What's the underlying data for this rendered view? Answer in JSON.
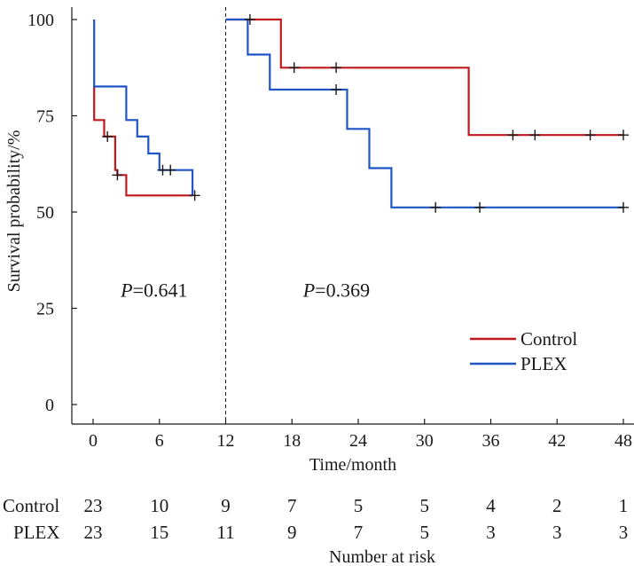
{
  "chart_data": {
    "type": "line",
    "subtype": "kaplan-meier",
    "ylabel": "Survival probability/%",
    "xlabel": "Time/month",
    "xlim": [
      0,
      48
    ],
    "ylim": [
      0,
      100
    ],
    "x_ticks": [
      0,
      6,
      12,
      18,
      24,
      30,
      36,
      42,
      48
    ],
    "y_ticks": [
      0,
      25,
      50,
      75,
      100
    ],
    "landmark_time": 12,
    "annotations": [
      {
        "prefix": "P",
        "text": "=0.641",
        "x": 2.5,
        "y": 28
      },
      {
        "prefix": "P",
        "text": "=0.369",
        "x": 19,
        "y": 28
      }
    ],
    "legend": {
      "position": "right",
      "entries": [
        "Control",
        "PLEX"
      ]
    },
    "series": [
      {
        "name": "Control",
        "color": "#c0181c",
        "segments": [
          {
            "points": [
              [
                0,
                82.6
              ],
              [
                0.1,
                82.6
              ],
              [
                0.1,
                73.9
              ],
              [
                1,
                73.9
              ],
              [
                1,
                69.6
              ],
              [
                2,
                69.6
              ],
              [
                2,
                60.9
              ],
              [
                2.2,
                60.9
              ],
              [
                2.2,
                59.6
              ],
              [
                3,
                59.6
              ],
              [
                3,
                54.3
              ],
              [
                9,
                54.3
              ]
            ]
          },
          {
            "points": [
              [
                12,
                100
              ],
              [
                17,
                100
              ],
              [
                17,
                87.5
              ],
              [
                34,
                87.5
              ],
              [
                34,
                70
              ],
              [
                48,
                70
              ]
            ]
          }
        ],
        "censors": [
          [
            1.3,
            69.6
          ],
          [
            2.2,
            59.6
          ],
          [
            9.2,
            54.3
          ],
          [
            18.2,
            87.5
          ],
          [
            22,
            87.5
          ],
          [
            38,
            70
          ],
          [
            40,
            70
          ],
          [
            45,
            70
          ],
          [
            48,
            70
          ]
        ]
      },
      {
        "name": "PLEX",
        "color": "#1f55c4",
        "segments": [
          {
            "points": [
              [
                0.1,
                100
              ],
              [
                0.1,
                82.6
              ],
              [
                3,
                82.6
              ],
              [
                3,
                73.9
              ],
              [
                4,
                73.9
              ],
              [
                4,
                69.6
              ],
              [
                5,
                69.6
              ],
              [
                5,
                65.2
              ],
              [
                6,
                65.2
              ],
              [
                6,
                60.9
              ],
              [
                9,
                60.9
              ],
              [
                9,
                54.3
              ]
            ]
          },
          {
            "points": [
              [
                12,
                100
              ],
              [
                14,
                100
              ],
              [
                14,
                90.9
              ],
              [
                16,
                90.9
              ],
              [
                16,
                81.8
              ],
              [
                23,
                81.8
              ],
              [
                23,
                71.6
              ],
              [
                25,
                71.6
              ],
              [
                25,
                61.4
              ],
              [
                27,
                61.4
              ],
              [
                27,
                51.2
              ],
              [
                48,
                51.2
              ]
            ]
          }
        ],
        "censors": [
          [
            6.3,
            60.9
          ],
          [
            7,
            60.9
          ],
          [
            14.2,
            100
          ],
          [
            22,
            81.8
          ],
          [
            31,
            51.2
          ],
          [
            35,
            51.2
          ],
          [
            48,
            51.2
          ]
        ]
      }
    ]
  },
  "risk_table": {
    "title": "Number at risk",
    "times": [
      0,
      6,
      12,
      18,
      24,
      30,
      36,
      42,
      48
    ],
    "rows": [
      {
        "label": "Control",
        "counts": [
          "23",
          "10",
          "9",
          "7",
          "5",
          "5",
          "4",
          "2",
          "1"
        ]
      },
      {
        "label": "PLEX",
        "counts": [
          "23",
          "15",
          "11",
          "9",
          "7",
          "5",
          "3",
          "3",
          "3"
        ]
      }
    ]
  }
}
